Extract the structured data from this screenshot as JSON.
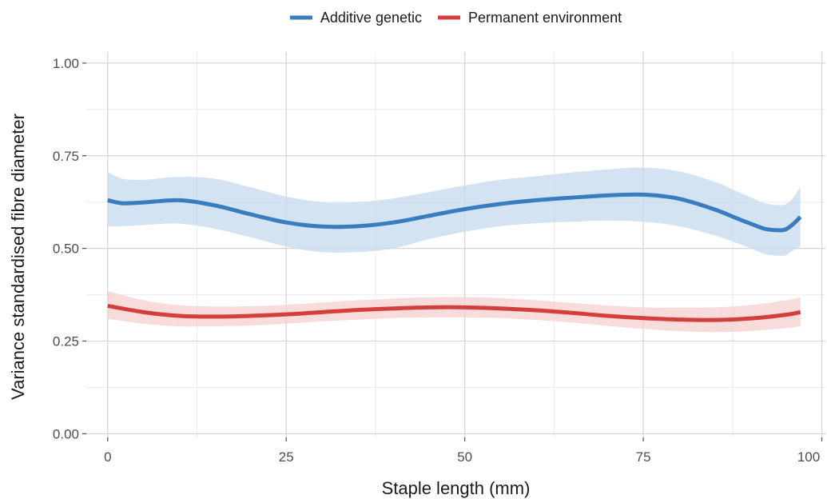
{
  "chart_data": {
    "type": "line",
    "xlabel": "Staple length (mm)",
    "ylabel": "Variance standardised fibre diameter",
    "xlim": [
      -3,
      100.5
    ],
    "ylim": [
      -0.01,
      1.03
    ],
    "x_ticks": [
      0,
      25,
      50,
      75,
      100
    ],
    "x_tick_labels": [
      "0",
      "25",
      "50",
      "75",
      "100"
    ],
    "y_ticks": [
      0,
      0.25,
      0.5,
      0.75,
      1.0
    ],
    "y_tick_labels": [
      "0.00",
      "0.25",
      "0.50",
      "0.75",
      "1.00"
    ],
    "grid": true,
    "legend_position": "top",
    "series": [
      {
        "name": "Additive genetic",
        "color": "#3a7dbf",
        "band_color": "#c6daee",
        "x": [
          0,
          2,
          5,
          10,
          15,
          20,
          25,
          30,
          35,
          40,
          45,
          50,
          55,
          60,
          65,
          70,
          75,
          80,
          85,
          88,
          90,
          92,
          94,
          95,
          96,
          97
        ],
        "y": [
          0.63,
          0.622,
          0.624,
          0.63,
          0.616,
          0.592,
          0.57,
          0.559,
          0.56,
          0.57,
          0.588,
          0.606,
          0.62,
          0.63,
          0.637,
          0.643,
          0.645,
          0.634,
          0.605,
          0.582,
          0.567,
          0.553,
          0.549,
          0.552,
          0.566,
          0.585
        ],
        "lower": [
          0.56,
          0.56,
          0.563,
          0.567,
          0.553,
          0.53,
          0.505,
          0.49,
          0.49,
          0.5,
          0.525,
          0.545,
          0.56,
          0.568,
          0.572,
          0.575,
          0.572,
          0.56,
          0.535,
          0.515,
          0.5,
          0.485,
          0.48,
          0.482,
          0.495,
          0.505
        ],
        "upper": [
          0.707,
          0.688,
          0.685,
          0.693,
          0.688,
          0.665,
          0.64,
          0.625,
          0.625,
          0.635,
          0.652,
          0.67,
          0.685,
          0.695,
          0.705,
          0.713,
          0.718,
          0.708,
          0.68,
          0.655,
          0.638,
          0.622,
          0.617,
          0.62,
          0.637,
          0.667
        ]
      },
      {
        "name": "Permanent environment",
        "color": "#d33f3c",
        "band_color": "#f5cfcf",
        "x": [
          0,
          5,
          10,
          15,
          20,
          25,
          30,
          35,
          40,
          45,
          50,
          55,
          60,
          65,
          70,
          75,
          80,
          85,
          90,
          95,
          97
        ],
        "y": [
          0.345,
          0.328,
          0.318,
          0.316,
          0.318,
          0.322,
          0.328,
          0.334,
          0.338,
          0.341,
          0.341,
          0.338,
          0.333,
          0.326,
          0.318,
          0.312,
          0.308,
          0.307,
          0.311,
          0.321,
          0.328
        ],
        "lower": [
          0.31,
          0.297,
          0.29,
          0.29,
          0.292,
          0.297,
          0.303,
          0.308,
          0.312,
          0.314,
          0.314,
          0.312,
          0.307,
          0.3,
          0.291,
          0.283,
          0.277,
          0.274,
          0.277,
          0.285,
          0.29
        ],
        "upper": [
          0.385,
          0.36,
          0.347,
          0.343,
          0.344,
          0.348,
          0.354,
          0.36,
          0.365,
          0.368,
          0.369,
          0.366,
          0.36,
          0.353,
          0.346,
          0.341,
          0.34,
          0.341,
          0.347,
          0.36,
          0.368
        ]
      }
    ]
  }
}
